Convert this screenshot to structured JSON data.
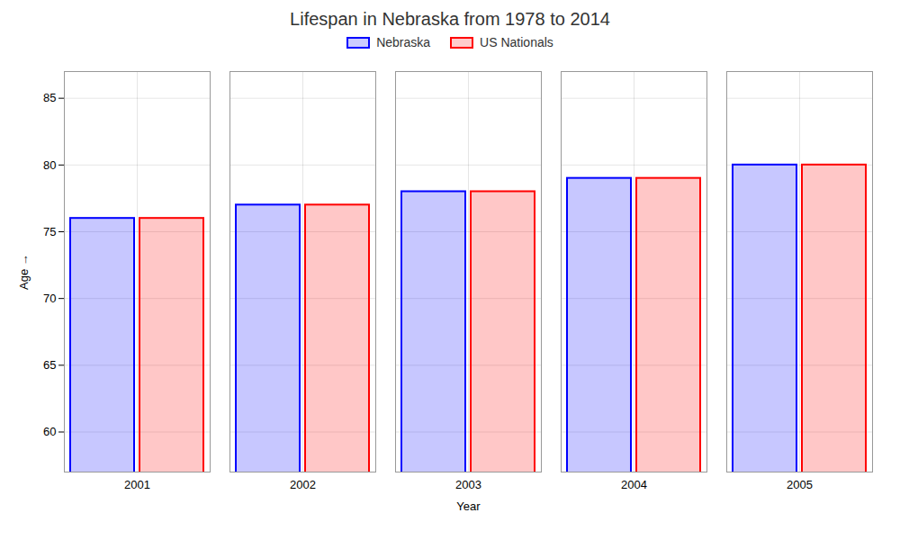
{
  "chart_data": {
    "type": "bar",
    "title": "Lifespan in Nebraska from 1978 to 2014",
    "xlabel": "Year",
    "ylabel": "Age",
    "categories": [
      "2001",
      "2002",
      "2003",
      "2004",
      "2005"
    ],
    "series": [
      {
        "name": "Nebraska",
        "color": "#0000ff",
        "values": [
          76,
          77,
          78,
          79,
          80
        ]
      },
      {
        "name": "US Nationals",
        "color": "#ff0000",
        "values": [
          76,
          77,
          78,
          79,
          80
        ]
      }
    ],
    "ylim": [
      57,
      87
    ],
    "yticks": [
      60,
      65,
      70,
      75,
      80,
      85
    ],
    "grid": true,
    "legend": "top"
  }
}
